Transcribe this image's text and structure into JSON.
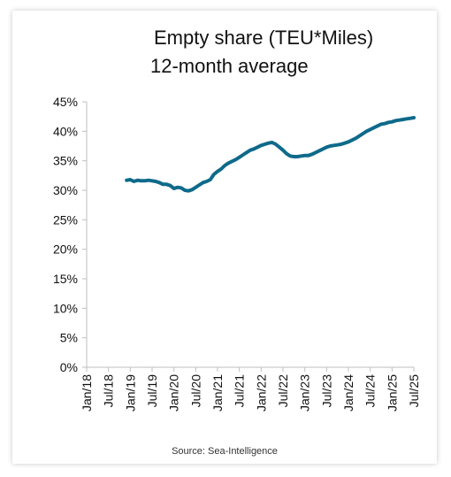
{
  "chart_data": {
    "type": "line",
    "title": "Empty share (TEU*Miles)",
    "subtitle": "12-month average",
    "xlabel": "",
    "ylabel": "",
    "x_ticks": [
      "Jan/18",
      "Jul/18",
      "Jan/19",
      "Jul/19",
      "Jan/20",
      "Jul/20",
      "Jan/21",
      "Jul/21",
      "Jan/22",
      "Jul/22",
      "Jan/23",
      "Jul/23",
      "Jan/24",
      "Jul/24",
      "Jan/25",
      "Jul/25"
    ],
    "y_ticks": [
      "0%",
      "5%",
      "10%",
      "15%",
      "20%",
      "25%",
      "30%",
      "35%",
      "40%",
      "45%"
    ],
    "ylim": [
      0,
      45
    ],
    "xlim": [
      "Jan/18",
      "Jul/25"
    ],
    "grid": false,
    "legend": "none",
    "series": [
      {
        "color": "#0e6a8a",
        "x": [
          "Dec/18",
          "Jan/19",
          "Feb/19",
          "Mar/19",
          "Apr/19",
          "May/19",
          "Jun/19",
          "Jul/19",
          "Aug/19",
          "Sep/19",
          "Oct/19",
          "Nov/19",
          "Dec/19",
          "Jan/20",
          "Feb/20",
          "Mar/20",
          "Apr/20",
          "May/20",
          "Jun/20",
          "Jul/20",
          "Aug/20",
          "Sep/20",
          "Oct/20",
          "Nov/20",
          "Dec/20",
          "Jan/21",
          "Feb/21",
          "Mar/21",
          "Apr/21",
          "May/21",
          "Jun/21",
          "Jul/21",
          "Aug/21",
          "Sep/21",
          "Oct/21",
          "Nov/21",
          "Dec/21",
          "Jan/22",
          "Feb/22",
          "Mar/22",
          "Apr/22",
          "May/22",
          "Jun/22",
          "Jul/22",
          "Aug/22",
          "Sep/22",
          "Oct/22",
          "Nov/22",
          "Dec/22",
          "Jan/23",
          "Feb/23",
          "Mar/23",
          "Apr/23",
          "May/23",
          "Jun/23",
          "Jul/23",
          "Aug/23",
          "Sep/23",
          "Oct/23",
          "Nov/23",
          "Dec/23",
          "Jan/24",
          "Feb/24",
          "Mar/24",
          "Apr/24",
          "May/24",
          "Jun/24",
          "Jul/24",
          "Aug/24",
          "Sep/24",
          "Oct/24",
          "Nov/24",
          "Dec/24",
          "Jan/25",
          "Feb/25",
          "Mar/25",
          "Apr/25",
          "May/25",
          "Jun/25",
          "Jul/25"
        ],
        "values": [
          31.7,
          31.8,
          31.5,
          31.7,
          31.6,
          31.6,
          31.7,
          31.6,
          31.5,
          31.3,
          31.0,
          31.0,
          30.8,
          30.3,
          30.5,
          30.4,
          30.0,
          29.9,
          30.1,
          30.5,
          30.9,
          31.3,
          31.5,
          31.8,
          32.7,
          33.2,
          33.6,
          34.2,
          34.6,
          34.9,
          35.2,
          35.6,
          36.0,
          36.4,
          36.8,
          37.0,
          37.3,
          37.6,
          37.8,
          38.0,
          38.1,
          37.8,
          37.3,
          36.8,
          36.2,
          35.8,
          35.7,
          35.7,
          35.8,
          35.9,
          35.9,
          36.1,
          36.4,
          36.7,
          37.0,
          37.3,
          37.5,
          37.6,
          37.7,
          37.8,
          38.0,
          38.2,
          38.5,
          38.8,
          39.2,
          39.6,
          40.0,
          40.3,
          40.6,
          40.9,
          41.2,
          41.3,
          41.5,
          41.6,
          41.8,
          41.9,
          42.0,
          42.1,
          42.2,
          42.3
        ]
      }
    ],
    "source": "Source: Sea-Intelligence"
  }
}
